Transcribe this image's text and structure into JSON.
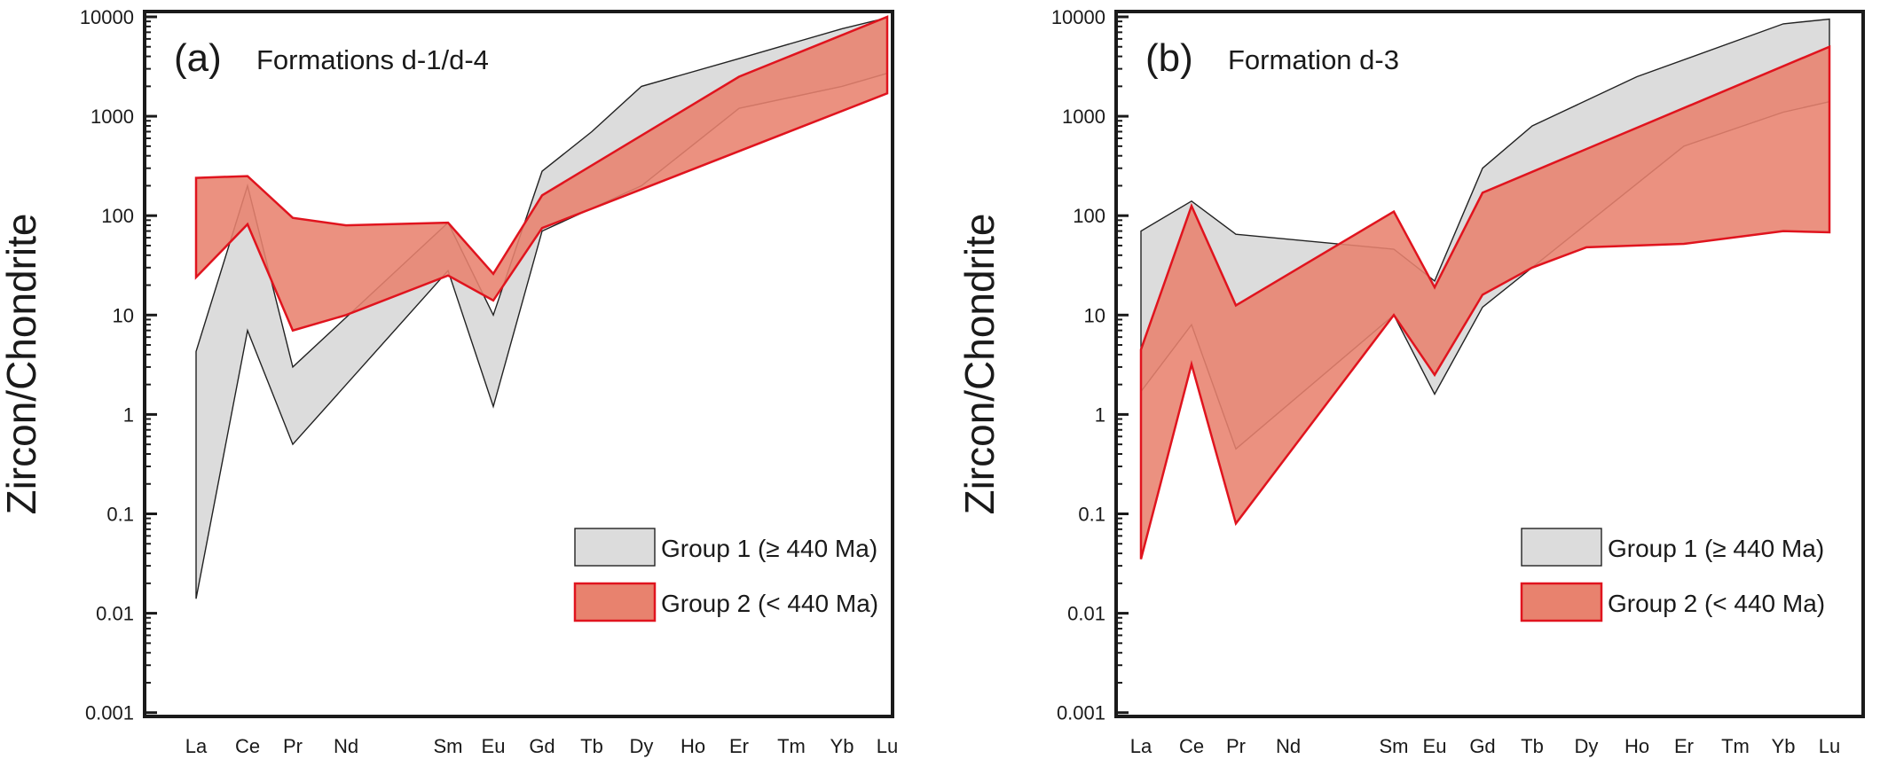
{
  "chart_data": [
    {
      "type": "area",
      "panel_label": "(a)",
      "title": "Formations d-1/d-4",
      "ylabel": "Zircon/Chondrite",
      "yscale": "log",
      "ylim": [
        0.001,
        10000
      ],
      "yticks": [
        "0.001",
        "0.01",
        "0.1",
        "1",
        "10",
        "100",
        "1000",
        "10000"
      ],
      "categories": [
        "La",
        "Ce",
        "Pr",
        "Nd",
        "Sm",
        "Eu",
        "Gd",
        "Tb",
        "Dy",
        "Ho",
        "Er",
        "Tm",
        "Yb",
        "Lu"
      ],
      "legend_position": "bottom-right",
      "series": [
        {
          "name": "Group 1 (≥ 440 Ma)",
          "color": "#dcdcdc",
          "stroke": "#222222",
          "upper": [
            4.3,
            200,
            3,
            null,
            85,
            10,
            280,
            700,
            2000,
            null,
            3800,
            null,
            7600,
            9800
          ],
          "lower": [
            0.014,
            7,
            0.5,
            null,
            28,
            1.2,
            70,
            null,
            200,
            null,
            1200,
            null,
            2000,
            2700
          ]
        },
        {
          "name": "Group 2 (< 440 Ma)",
          "color": "#e8826e",
          "stroke": "#e0141e",
          "upper": [
            240,
            250,
            95,
            80,
            85,
            26,
            160,
            null,
            null,
            null,
            2500,
            null,
            null,
            10000
          ],
          "lower": [
            24,
            82,
            7,
            10,
            25,
            14,
            75,
            null,
            null,
            null,
            null,
            null,
            null,
            1700
          ]
        }
      ]
    },
    {
      "type": "area",
      "panel_label": "(b)",
      "title": "Formation d-3",
      "ylabel": "Zircon/Chondrite",
      "yscale": "log",
      "ylim": [
        0.001,
        10000
      ],
      "yticks": [
        "0.001",
        "0.01",
        "0.1",
        "1",
        "10",
        "100",
        "1000",
        "10000"
      ],
      "categories": [
        "La",
        "Ce",
        "Pr",
        "Nd",
        "Sm",
        "Eu",
        "Gd",
        "Tb",
        "Dy",
        "Ho",
        "Er",
        "Tm",
        "Yb",
        "Lu"
      ],
      "legend_position": "bottom-right",
      "series": [
        {
          "name": "Group 1 (≥ 440 Ma)",
          "color": "#dcdcdc",
          "stroke": "#222222",
          "upper": [
            70,
            140,
            65,
            null,
            46,
            22,
            300,
            800,
            null,
            2500,
            null,
            null,
            8500,
            9500
          ],
          "lower": [
            1.7,
            8,
            0.45,
            null,
            10,
            1.6,
            12,
            null,
            null,
            null,
            500,
            null,
            1100,
            1400
          ]
        },
        {
          "name": "Group 2 (< 440 Ma)",
          "color": "#e8826e",
          "stroke": "#e0141e",
          "upper": [
            4.5,
            125,
            12.5,
            null,
            110,
            19,
            170,
            null,
            null,
            null,
            null,
            null,
            null,
            5000
          ],
          "lower": [
            0.035,
            3.2,
            0.08,
            null,
            10,
            2.5,
            16,
            30,
            48,
            50,
            52,
            null,
            70,
            68
          ]
        }
      ]
    }
  ]
}
